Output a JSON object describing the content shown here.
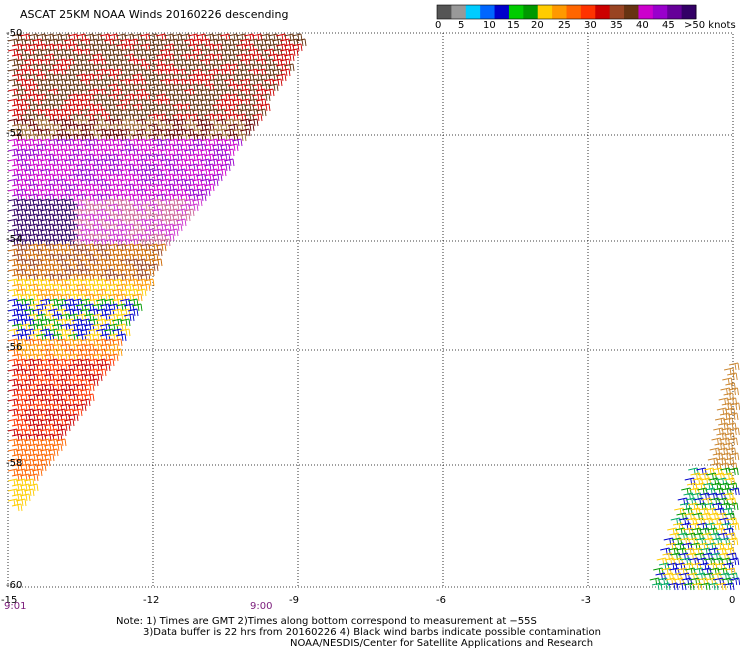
{
  "title": "ASCAT 25KM NOAA Winds 20160226 descending",
  "colorbar": {
    "colors": [
      "#555555",
      "#999999",
      "#00ccff",
      "#0066ff",
      "#0000cc",
      "#00cc00",
      "#009900",
      "#ffcc00",
      "#ff9900",
      "#ff6600",
      "#ff3300",
      "#cc0000",
      "#994422",
      "#663311",
      "#cc00cc",
      "#9900cc",
      "#660099",
      "#330066"
    ],
    "labels": [
      "0",
      "5",
      "10",
      "15",
      "20",
      "25",
      "30",
      "35",
      "40",
      "45",
      ">50 knots"
    ]
  },
  "map": {
    "lat_labels": [
      "-50",
      "-52",
      "-54",
      "-56",
      "-58",
      "-60"
    ],
    "lon_labels": [
      "-15",
      "-12",
      "-9",
      "-6",
      "-3",
      "0"
    ],
    "time_labels": [
      "9:01",
      "9:00"
    ]
  },
  "notes": {
    "line1": "Note: 1) Times are GMT 2)Times along bottom correspond to measurement at −55S",
    "line2": "3)Data buffer is 22 hrs from 20160226 4) Black wind barbs indicate possible contamination",
    "line3": "NOAA/NESDIS/Center for Satellite Applications and Research"
  }
}
